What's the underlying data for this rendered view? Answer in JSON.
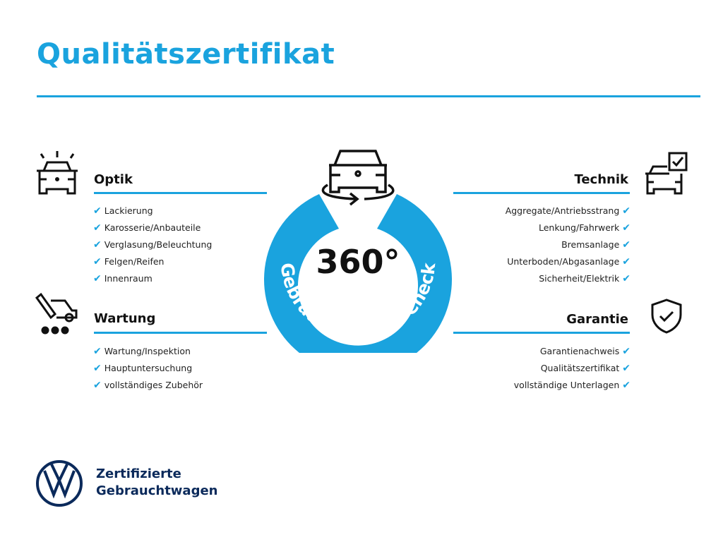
{
  "header": {
    "title": "Qualitätszertifikat"
  },
  "colors": {
    "accent": "#1aa3de",
    "brand": "#0b2a5b",
    "text": "#111111"
  },
  "badge": {
    "number": "360°",
    "arc_text": "Gebrauchtwagen-Check",
    "icon": "car-rotate-icon"
  },
  "sections": {
    "optik": {
      "title": "Optik",
      "icon": "car-lights-icon",
      "items": [
        "Lackierung",
        "Karosserie/Anbauteile",
        "Verglasung/Beleuchtung",
        "Felgen/Reifen",
        "Innenraum"
      ]
    },
    "wartung": {
      "title": "Wartung",
      "icon": "service-truck-icon",
      "items": [
        "Wartung/Inspektion",
        "Hauptuntersuchung",
        "vollständiges Zubehör"
      ]
    },
    "technik": {
      "title": "Technik",
      "icon": "car-checklist-icon",
      "items": [
        "Aggregate/Antriebsstrang",
        "Lenkung/Fahrwerk",
        "Bremsanlage",
        "Unterboden/Abgasanlage",
        "Sicherheit/Elektrik"
      ]
    },
    "garantie": {
      "title": "Garantie",
      "icon": "shield-check-icon",
      "items": [
        "Garantienachweis",
        "Qualitätszertifikat",
        "vollständige Unterlagen"
      ]
    }
  },
  "footer": {
    "logo": "VW",
    "line1": "Zertifizierte",
    "line2": "Gebrauchtwagen"
  }
}
